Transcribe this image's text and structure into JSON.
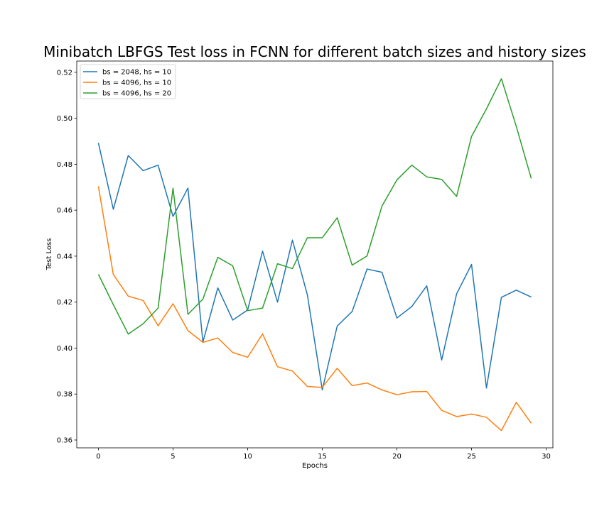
{
  "chart_data": {
    "type": "line",
    "title": "Minibatch LBFGS Test loss in FCNN for different batch sizes and history sizes",
    "xlabel": "Epochs",
    "ylabel": "Test Loss",
    "xlim": [
      -1.45,
      30.45
    ],
    "ylim": [
      0.3566,
      0.5249
    ],
    "xticks": [
      0,
      5,
      10,
      15,
      20,
      25,
      30
    ],
    "xtick_labels": [
      "0",
      "5",
      "10",
      "15",
      "20",
      "25",
      "30"
    ],
    "yticks": [
      0.36,
      0.38,
      0.4,
      0.42,
      0.44,
      0.46,
      0.48,
      0.5,
      0.52
    ],
    "ytick_labels": [
      "0.36",
      "0.38",
      "0.40",
      "0.42",
      "0.44",
      "0.46",
      "0.48",
      "0.50",
      "0.52"
    ],
    "grid": false,
    "legend_position": "top-left",
    "x": [
      0,
      1,
      2,
      3,
      4,
      5,
      6,
      7,
      8,
      9,
      10,
      11,
      12,
      13,
      14,
      15,
      16,
      17,
      18,
      19,
      20,
      21,
      22,
      23,
      24,
      25,
      26,
      27,
      28,
      29
    ],
    "series": [
      {
        "name": "bs = 2048, hs = 10",
        "color": "#1f77b4",
        "values": [
          0.4893,
          0.4604,
          0.4838,
          0.4772,
          0.4796,
          0.4573,
          0.4696,
          0.4026,
          0.4262,
          0.4122,
          0.4166,
          0.4422,
          0.42,
          0.447,
          0.4232,
          0.3818,
          0.4096,
          0.4159,
          0.4344,
          0.433,
          0.4131,
          0.4181,
          0.4271,
          0.3948,
          0.4236,
          0.4364,
          0.3826,
          0.4221,
          0.4252,
          0.4222
        ]
      },
      {
        "name": "bs = 4096, hs = 10",
        "color": "#ff7f0e",
        "values": [
          0.4704,
          0.432,
          0.4226,
          0.4207,
          0.4097,
          0.4193,
          0.4076,
          0.4025,
          0.4044,
          0.3981,
          0.396,
          0.4062,
          0.3919,
          0.39,
          0.3833,
          0.3829,
          0.3912,
          0.3837,
          0.3848,
          0.3818,
          0.3797,
          0.381,
          0.3811,
          0.3729,
          0.3702,
          0.3713,
          0.3699,
          0.3641,
          0.3764,
          0.3673
        ]
      },
      {
        "name": "bs = 4096, hs = 20",
        "color": "#2ca02c",
        "values": [
          0.4321,
          0.4189,
          0.4061,
          0.4106,
          0.4174,
          0.4696,
          0.4147,
          0.4213,
          0.4395,
          0.4358,
          0.4163,
          0.4174,
          0.4367,
          0.4346,
          0.448,
          0.448,
          0.4567,
          0.4361,
          0.4401,
          0.4618,
          0.4732,
          0.4796,
          0.4745,
          0.4734,
          0.466,
          0.4921,
          0.5041,
          0.5172,
          0.4964,
          0.4738
        ]
      }
    ]
  }
}
